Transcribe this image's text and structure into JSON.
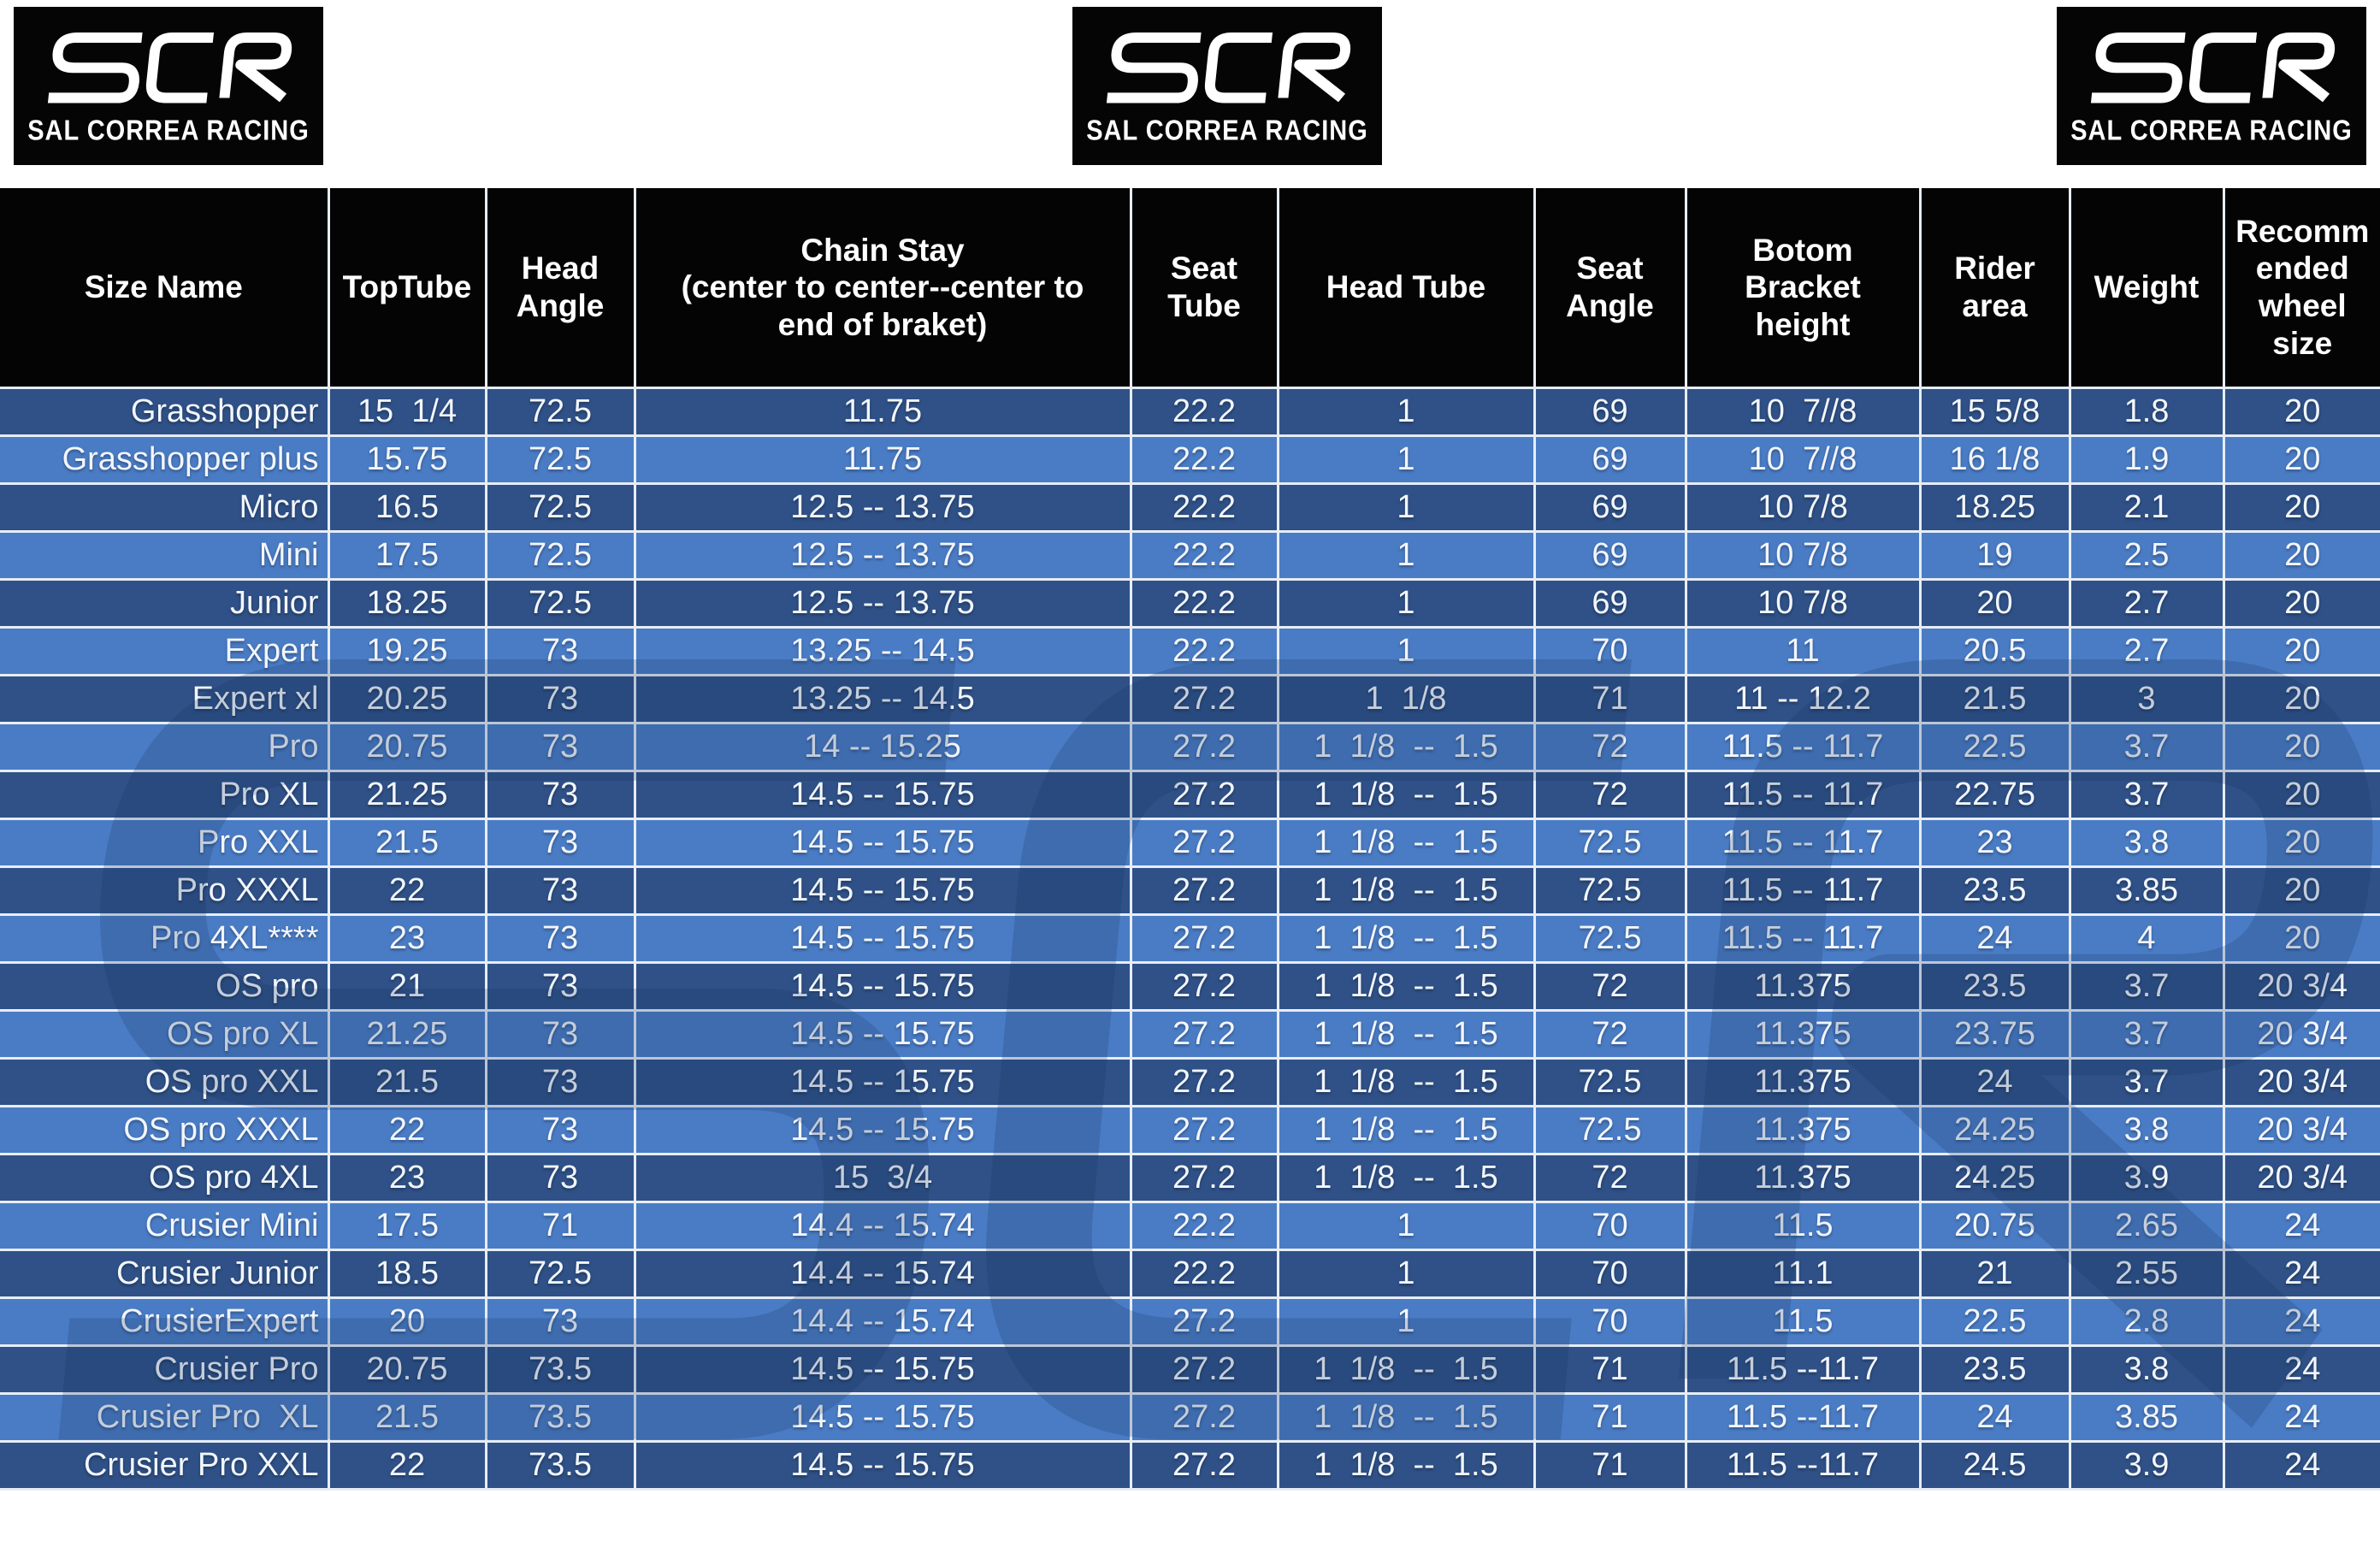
{
  "brand": {
    "logo_text": "SCR",
    "logo_subtitle": "SAL CORREA RACING"
  },
  "colors": {
    "row_dark": "#2f5187",
    "row_light": "#4a7cc5",
    "header_bg": "#040404",
    "grid_line": "#e7edf6",
    "cell_text": "#f2f6fc"
  },
  "chart_data": {
    "type": "table",
    "columns": [
      "Size Name",
      "TopTube",
      "Head\nAngle",
      "Chain Stay\n(center to center--center to\nend of braket)",
      "Seat\nTube",
      "Head Tube",
      "Seat\nAngle",
      "Botom\nBracket\nheight",
      "Rider\narea",
      "Weight",
      "Recomm\nended\nwheel\nsize"
    ],
    "rows": [
      [
        "Grasshopper",
        "15  1/4",
        "72.5",
        "11.75",
        "22.2",
        "1",
        "69",
        "10  7//8",
        "15 5/8",
        "1.8",
        "20"
      ],
      [
        "Grasshopper plus",
        "15.75",
        "72.5",
        "11.75",
        "22.2",
        "1",
        "69",
        "10  7//8",
        "16 1/8",
        "1.9",
        "20"
      ],
      [
        "Micro",
        "16.5",
        "72.5",
        "12.5 -- 13.75",
        "22.2",
        "1",
        "69",
        "10 7/8",
        "18.25",
        "2.1",
        "20"
      ],
      [
        "Mini",
        "17.5",
        "72.5",
        "12.5 -- 13.75",
        "22.2",
        "1",
        "69",
        "10 7/8",
        "19",
        "2.5",
        "20"
      ],
      [
        "Junior",
        "18.25",
        "72.5",
        "12.5 -- 13.75",
        "22.2",
        "1",
        "69",
        "10 7/8",
        "20",
        "2.7",
        "20"
      ],
      [
        "Expert",
        "19.25",
        "73",
        "13.25 -- 14.5",
        "22.2",
        "1",
        "70",
        "11",
        "20.5",
        "2.7",
        "20"
      ],
      [
        "Expert xl",
        "20.25",
        "73",
        "13.25 -- 14.5",
        "27.2",
        "1  1/8",
        "71",
        "11 -- 12.2",
        "21.5",
        "3",
        "20"
      ],
      [
        "Pro",
        "20.75",
        "73",
        "14 -- 15.25",
        "27.2",
        "1  1/8  --  1.5",
        "72",
        "11.5 -- 11.7",
        "22.5",
        "3.7",
        "20"
      ],
      [
        "Pro XL",
        "21.25",
        "73",
        "14.5 -- 15.75",
        "27.2",
        "1  1/8  --  1.5",
        "72",
        "11.5 -- 11.7",
        "22.75",
        "3.7",
        "20"
      ],
      [
        "Pro XXL",
        "21.5",
        "73",
        "14.5 -- 15.75",
        "27.2",
        "1  1/8  --  1.5",
        "72.5",
        "11.5 -- 11.7",
        "23",
        "3.8",
        "20"
      ],
      [
        "Pro XXXL",
        "22",
        "73",
        "14.5 -- 15.75",
        "27.2",
        "1  1/8  --  1.5",
        "72.5",
        "11.5 -- 11.7",
        "23.5",
        "3.85",
        "20"
      ],
      [
        "Pro 4XL****",
        "23",
        "73",
        "14.5 -- 15.75",
        "27.2",
        "1  1/8  --  1.5",
        "72.5",
        "11.5 -- 11.7",
        "24",
        "4",
        "20"
      ],
      [
        "OS pro",
        "21",
        "73",
        "14.5 -- 15.75",
        "27.2",
        "1  1/8  --  1.5",
        "72",
        "11.375",
        "23.5",
        "3.7",
        "20 3/4"
      ],
      [
        "OS pro XL",
        "21.25",
        "73",
        "14.5 -- 15.75",
        "27.2",
        "1  1/8  --  1.5",
        "72",
        "11.375",
        "23.75",
        "3.7",
        "20 3/4"
      ],
      [
        "OS pro XXL",
        "21.5",
        "73",
        "14.5 -- 15.75",
        "27.2",
        "1  1/8  --  1.5",
        "72.5",
        "11.375",
        "24",
        "3.7",
        "20 3/4"
      ],
      [
        "OS pro XXXL",
        "22",
        "73",
        "14.5 -- 15.75",
        "27.2",
        "1  1/8  --  1.5",
        "72.5",
        "11.375",
        "24.25",
        "3.8",
        "20 3/4"
      ],
      [
        "OS pro 4XL",
        "23",
        "73",
        "15  3/4",
        "27.2",
        "1  1/8  --  1.5",
        "72",
        "11.375",
        "24.25",
        "3.9",
        "20 3/4"
      ],
      [
        "Crusier Mini",
        "17.5",
        "71",
        "14.4 -- 15.74",
        "22.2",
        "1",
        "70",
        "11.5",
        "20.75",
        "2.65",
        "24"
      ],
      [
        "Crusier Junior",
        "18.5",
        "72.5",
        "14.4 -- 15.74",
        "22.2",
        "1",
        "70",
        "11.1",
        "21",
        "2.55",
        "24"
      ],
      [
        "CrusierExpert",
        "20",
        "73",
        "14.4 -- 15.74",
        "27.2",
        "1",
        "70",
        "11.5",
        "22.5",
        "2.8",
        "24"
      ],
      [
        "Crusier Pro",
        "20.75",
        "73.5",
        "14.5 -- 15.75",
        "27.2",
        "1  1/8  --  1.5",
        "71",
        "11.5 --11.7",
        "23.5",
        "3.8",
        "24"
      ],
      [
        "Crusier Pro  XL",
        "21.5",
        "73.5",
        "14.5 -- 15.75",
        "27.2",
        "1  1/8  --  1.5",
        "71",
        "11.5 --11.7",
        "24",
        "3.85",
        "24"
      ],
      [
        "Crusier Pro XXL",
        "22",
        "73.5",
        "14.5 -- 15.75",
        "27.2",
        "1  1/8  --  1.5",
        "71",
        "11.5 --11.7",
        "24.5",
        "3.9",
        "24"
      ]
    ]
  }
}
